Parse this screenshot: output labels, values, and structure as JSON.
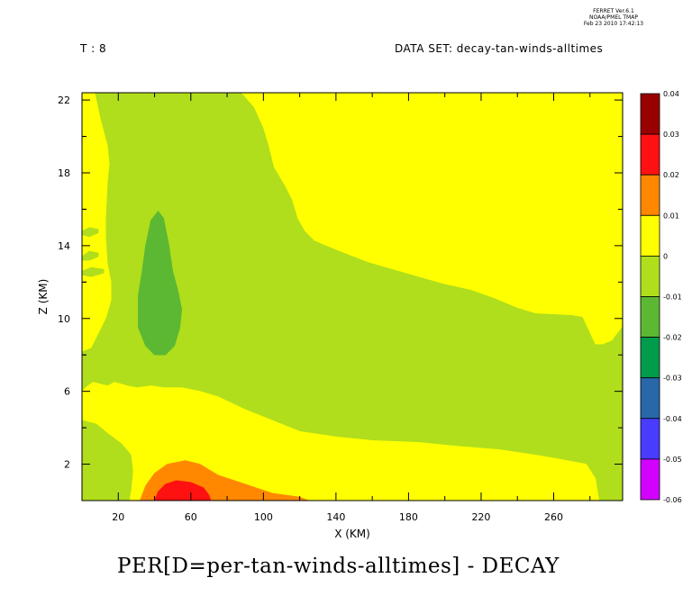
{
  "header": {
    "time_step": "T : 8",
    "dataset": "DATA SET: decay-tan-winds-alltimes",
    "stamp_lines": [
      "FERRET Ver.6.1",
      "NOAA/PMEL TMAP",
      "Feb 23 2010 17:42:13"
    ]
  },
  "footer": {
    "title": "PER[D=per-tan-winds-alltimes] - DECAY"
  },
  "chart_data": {
    "type": "heatmap",
    "subtype": "filled-contour",
    "title": "PER[D=per-tan-winds-alltimes] - DECAY",
    "xlabel": "X (KM)",
    "ylabel": "Z (KM)",
    "xlim": [
      0,
      298
    ],
    "ylim": [
      0,
      22.4
    ],
    "x_ticks": [
      20,
      60,
      100,
      140,
      180,
      220,
      260
    ],
    "y_ticks": [
      2,
      6,
      10,
      14,
      18,
      22
    ],
    "grid": false,
    "legend_position": "right",
    "colorbar": {
      "levels": [
        0.04,
        0.03,
        0.02,
        0.01,
        0,
        -0.01,
        -0.02,
        -0.03,
        -0.04,
        -0.05,
        -0.06
      ],
      "labels": [
        "0.04",
        "0.03",
        "0.02",
        "0.01",
        "0",
        "-0.01",
        "-0.02",
        "-0.03",
        "-0.04",
        "-0.05",
        "-0.06"
      ],
      "colors": [
        "#990000",
        "#ff1111",
        "#ff8800",
        "#ffff00",
        "#b0de1c",
        "#5cb832",
        "#009b4b",
        "#2868a8",
        "#4a3cff",
        "#d100ff"
      ]
    },
    "regions": [
      {
        "range": [
          -0.01,
          0
        ],
        "color": "#b0de1c",
        "role": "background",
        "points": [
          [
            0,
            0
          ],
          [
            298,
            0
          ],
          [
            298,
            22.4
          ],
          [
            0,
            22.4
          ]
        ]
      },
      {
        "range": [
          0,
          0.01
        ],
        "color": "#ffff00",
        "role": "upper-right",
        "points": [
          [
            7,
            22.4
          ],
          [
            10,
            21
          ],
          [
            14,
            19.5
          ],
          [
            15,
            18.5
          ],
          [
            14,
            17.5
          ],
          [
            13,
            15.5
          ],
          [
            13,
            14.5
          ],
          [
            14,
            13
          ],
          [
            16,
            12
          ],
          [
            16,
            11
          ],
          [
            13,
            10
          ],
          [
            8,
            9
          ],
          [
            5,
            8.4
          ],
          [
            0,
            8.2
          ],
          [
            0,
            22.4
          ]
        ]
      },
      {
        "range": [
          0,
          0.01
        ],
        "color": "#ffff00",
        "role": "upper-right",
        "points": [
          [
            88,
            22.4
          ],
          [
            95,
            21.6
          ],
          [
            100,
            20.5
          ],
          [
            103,
            19.5
          ],
          [
            106,
            18.3
          ],
          [
            112,
            17.3
          ],
          [
            116,
            16.5
          ],
          [
            119,
            15.5
          ],
          [
            123,
            14.8
          ],
          [
            128,
            14.3
          ],
          [
            135,
            14
          ],
          [
            145,
            13.6
          ],
          [
            158,
            13.1
          ],
          [
            172,
            12.7
          ],
          [
            186,
            12.3
          ],
          [
            200,
            11.9
          ],
          [
            214,
            11.6
          ],
          [
            228,
            11.1
          ],
          [
            240,
            10.6
          ],
          [
            250,
            10.3
          ],
          [
            270,
            10.2
          ],
          [
            276,
            10.1
          ],
          [
            283,
            8.6
          ],
          [
            287,
            8.6
          ],
          [
            292,
            8.8
          ],
          [
            298,
            9.6
          ],
          [
            298,
            22.4
          ]
        ]
      },
      {
        "range": [
          0,
          0.01
        ],
        "color": "#ffff00",
        "role": "low-level",
        "points": [
          [
            0,
            4.5
          ],
          [
            0,
            6
          ],
          [
            2,
            6.2
          ],
          [
            6,
            6.5
          ],
          [
            14,
            6.3
          ],
          [
            18,
            6.5
          ],
          [
            25,
            6.3
          ],
          [
            30,
            6.2
          ],
          [
            38,
            6.3
          ],
          [
            45,
            6.2
          ],
          [
            55,
            6.2
          ],
          [
            65,
            6
          ],
          [
            75,
            5.7
          ],
          [
            90,
            5
          ],
          [
            105,
            4.4
          ],
          [
            120,
            3.8
          ],
          [
            140,
            3.5
          ],
          [
            160,
            3.3
          ],
          [
            185,
            3.2
          ],
          [
            205,
            3
          ],
          [
            230,
            2.8
          ],
          [
            250,
            2.5
          ],
          [
            262,
            2.3
          ],
          [
            278,
            2
          ],
          [
            283,
            1.2
          ],
          [
            285,
            0
          ],
          [
            0,
            0
          ]
        ]
      },
      {
        "range": [
          -0.01,
          0
        ],
        "color": "#b0de1c",
        "role": "inner-left-patch",
        "points": [
          [
            0,
            0
          ],
          [
            0,
            4.4
          ],
          [
            8,
            4.2
          ],
          [
            14,
            3.7
          ],
          [
            22,
            3.1
          ],
          [
            27,
            2.5
          ],
          [
            28,
            1.6
          ],
          [
            27,
            0.6
          ],
          [
            26,
            0
          ],
          [
            0,
            0
          ]
        ]
      },
      {
        "range": [
          -0.02,
          -0.01
        ],
        "color": "#5cb832",
        "role": "negative-minimum",
        "points": [
          [
            42,
            15.9
          ],
          [
            45,
            15.5
          ],
          [
            48,
            14
          ],
          [
            50,
            12.6
          ],
          [
            53,
            11.5
          ],
          [
            55,
            10.5
          ],
          [
            54,
            9.5
          ],
          [
            51,
            8.5
          ],
          [
            46,
            8
          ],
          [
            40,
            8
          ],
          [
            35,
            8.5
          ],
          [
            31,
            9.5
          ],
          [
            31,
            11.3
          ],
          [
            33,
            12.5
          ],
          [
            35,
            14
          ],
          [
            38,
            15.4
          ]
        ]
      },
      {
        "range": [
          0.01,
          0.02
        ],
        "color": "#ff8800",
        "role": "low-level-maximum",
        "points": [
          [
            32,
            0
          ],
          [
            35,
            0.8
          ],
          [
            40,
            1.5
          ],
          [
            47,
            2
          ],
          [
            57,
            2.2
          ],
          [
            65,
            2
          ],
          [
            75,
            1.4
          ],
          [
            90,
            0.9
          ],
          [
            105,
            0.4
          ],
          [
            120,
            0.2
          ],
          [
            125,
            0
          ]
        ]
      },
      {
        "range": [
          0.02,
          0.03
        ],
        "color": "#ff1111",
        "role": "low-level-maximum",
        "points": [
          [
            40,
            0
          ],
          [
            42,
            0.5
          ],
          [
            46,
            0.9
          ],
          [
            52,
            1.1
          ],
          [
            60,
            1
          ],
          [
            67,
            0.7
          ],
          [
            70,
            0.3
          ],
          [
            71,
            0
          ]
        ]
      },
      {
        "range": [
          -0.01,
          0
        ],
        "color": "#b0de1c",
        "role": "streak",
        "points": [
          [
            0,
            14.8
          ],
          [
            4,
            15
          ],
          [
            9,
            14.9
          ],
          [
            9,
            14.7
          ],
          [
            4,
            14.5
          ],
          [
            0,
            14.6
          ]
        ]
      },
      {
        "range": [
          -0.01,
          0
        ],
        "color": "#b0de1c",
        "role": "streak",
        "points": [
          [
            0,
            13.4
          ],
          [
            4,
            13.7
          ],
          [
            9,
            13.6
          ],
          [
            9,
            13.4
          ],
          [
            4,
            13.2
          ],
          [
            0,
            13.2
          ]
        ]
      },
      {
        "range": [
          -0.01,
          0
        ],
        "color": "#b0de1c",
        "role": "streak",
        "points": [
          [
            0,
            12.6
          ],
          [
            5,
            12.8
          ],
          [
            12,
            12.7
          ],
          [
            12,
            12.5
          ],
          [
            5,
            12.3
          ],
          [
            0,
            12.4
          ]
        ]
      }
    ]
  }
}
